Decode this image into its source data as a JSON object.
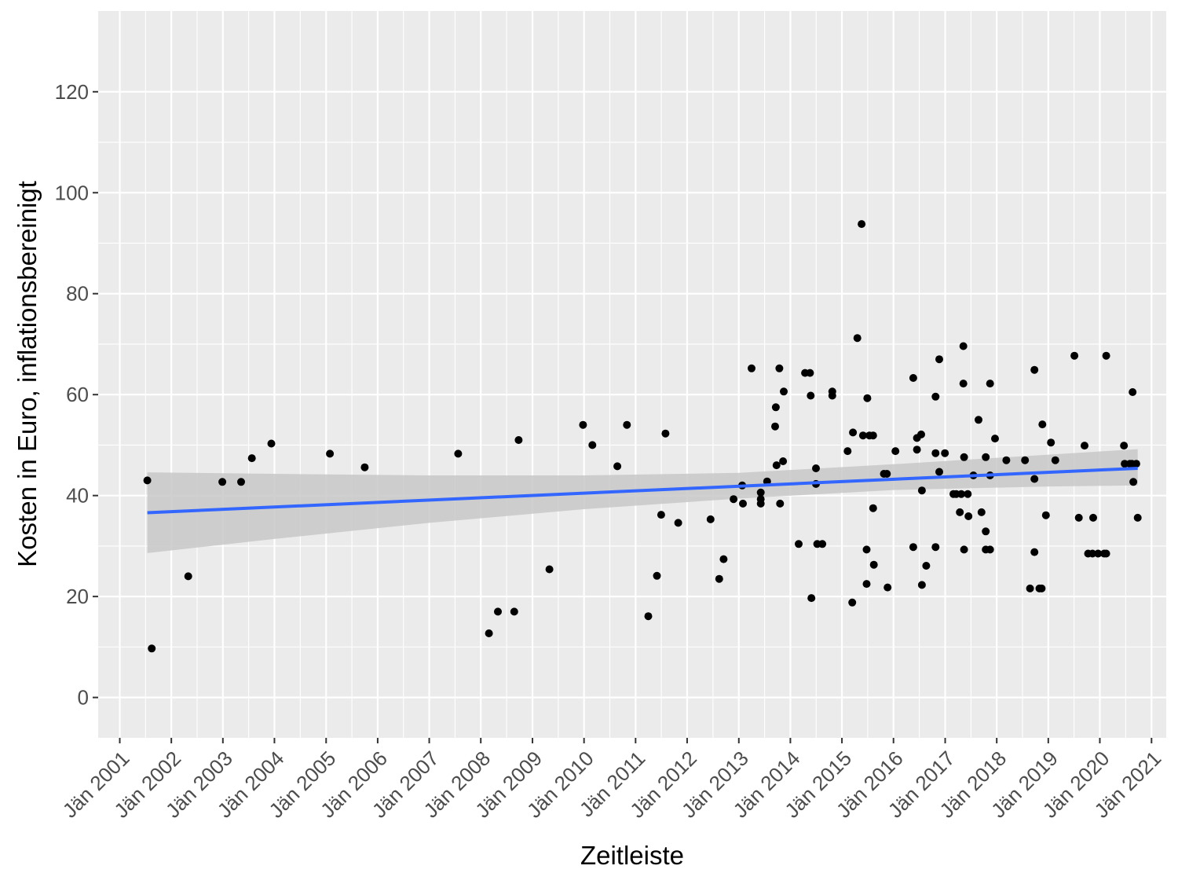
{
  "chart_data": {
    "type": "scatter",
    "xlabel": "Zeitleiste",
    "ylabel": "Kosten in Euro, inflationsbereinigt",
    "xlim": [
      "2000-08-01",
      "2021-04-15"
    ],
    "ylim": [
      -8,
      136
    ],
    "x_ticks": [
      "2001-01-01",
      "2002-01-01",
      "2003-01-01",
      "2004-01-01",
      "2005-01-01",
      "2006-01-01",
      "2007-01-01",
      "2008-01-01",
      "2009-01-01",
      "2010-01-01",
      "2011-01-01",
      "2012-01-01",
      "2013-01-01",
      "2014-01-01",
      "2015-01-01",
      "2016-01-01",
      "2017-01-01",
      "2018-01-01",
      "2019-01-01",
      "2020-01-01",
      "2021-01-01"
    ],
    "x_tick_labels": [
      "Jän 2001",
      "Jän 2002",
      "Jän 2003",
      "Jän 2004",
      "Jän 2005",
      "Jän 2006",
      "Jän 2007",
      "Jän 2008",
      "Jän 2009",
      "Jän 2010",
      "Jän 2011",
      "Jän 2012",
      "Jän 2013",
      "Jän 2014",
      "Jän 2015",
      "Jän 2016",
      "Jän 2017",
      "Jän 2018",
      "Jän 2019",
      "Jän 2020",
      "Jän 2021"
    ],
    "y_ticks": [
      0,
      20,
      40,
      60,
      80,
      100,
      120
    ],
    "y_tick_labels": [
      "0",
      "20",
      "40",
      "60",
      "80",
      "100",
      "120"
    ],
    "grid": true,
    "points": [
      [
        "2001-07-15",
        43
      ],
      [
        "2001-08-15",
        9.7
      ],
      [
        "2002-05-01",
        24
      ],
      [
        "2002-12-28",
        42.7
      ],
      [
        "2003-05-10",
        42.7
      ],
      [
        "2003-07-25",
        47.4
      ],
      [
        "2003-12-10",
        50.3
      ],
      [
        "2005-01-28",
        48.3
      ],
      [
        "2005-10-01",
        45.6
      ],
      [
        "2007-07-25",
        48.3
      ],
      [
        "2008-02-28",
        12.7
      ],
      [
        "2008-05-01",
        17
      ],
      [
        "2008-08-25",
        17
      ],
      [
        "2008-09-25",
        51
      ],
      [
        "2009-05-01",
        25.4
      ],
      [
        "2009-12-25",
        54
      ],
      [
        "2010-03-01",
        50
      ],
      [
        "2010-08-25",
        45.8
      ],
      [
        "2010-11-01",
        54
      ],
      [
        "2011-04-01",
        16.1
      ],
      [
        "2011-06-01",
        24.1
      ],
      [
        "2011-07-01",
        36.2
      ],
      [
        "2011-08-01",
        52.3
      ],
      [
        "2011-10-30",
        34.6
      ],
      [
        "2012-06-15",
        35.3
      ],
      [
        "2012-08-15",
        23.5
      ],
      [
        "2012-09-15",
        27.4
      ],
      [
        "2012-11-25",
        39.3
      ],
      [
        "2013-01-25",
        42
      ],
      [
        "2013-01-30",
        38.4
      ],
      [
        "2013-04-01",
        65.2
      ],
      [
        "2013-06-05",
        40.6
      ],
      [
        "2013-06-05",
        39.3
      ],
      [
        "2013-06-05",
        38.4
      ],
      [
        "2013-07-20",
        42.8
      ],
      [
        "2013-09-15",
        53.7
      ],
      [
        "2013-09-20",
        57.5
      ],
      [
        "2013-09-25",
        46
      ],
      [
        "2013-10-15",
        65.2
      ],
      [
        "2013-10-20",
        38.4
      ],
      [
        "2013-11-10",
        46.8
      ],
      [
        "2013-11-15",
        60.6
      ],
      [
        "2014-03-01",
        30.4
      ],
      [
        "2014-04-15",
        64.3
      ],
      [
        "2014-05-20",
        64.3
      ],
      [
        "2014-05-25",
        59.8
      ],
      [
        "2014-05-30",
        19.7
      ],
      [
        "2014-07-01",
        45.4
      ],
      [
        "2014-07-01",
        42.3
      ],
      [
        "2014-07-10",
        30.4
      ],
      [
        "2014-08-15",
        30.4
      ],
      [
        "2014-10-25",
        60.6
      ],
      [
        "2014-10-25",
        59.8
      ],
      [
        "2015-02-10",
        48.8
      ],
      [
        "2015-03-15",
        18.8
      ],
      [
        "2015-03-20",
        52.5
      ],
      [
        "2015-04-20",
        71.2
      ],
      [
        "2015-05-20",
        93.8
      ],
      [
        "2015-05-30",
        51.9
      ],
      [
        "2015-06-25",
        22.5
      ],
      [
        "2015-06-25",
        29.3
      ],
      [
        "2015-06-30",
        59.3
      ],
      [
        "2015-07-15",
        51.9
      ],
      [
        "2015-08-10",
        51.9
      ],
      [
        "2015-08-10",
        37.5
      ],
      [
        "2015-08-15",
        26.3
      ],
      [
        "2015-10-25",
        44.3
      ],
      [
        "2015-11-15",
        44.3
      ],
      [
        "2015-11-20",
        21.8
      ],
      [
        "2016-01-15",
        48.8
      ],
      [
        "2016-05-20",
        63.3
      ],
      [
        "2016-05-20",
        29.8
      ],
      [
        "2016-06-15",
        51.4
      ],
      [
        "2016-06-15",
        49.1
      ],
      [
        "2016-07-15",
        52.1
      ],
      [
        "2016-07-20",
        41
      ],
      [
        "2016-07-20",
        22.3
      ],
      [
        "2016-08-20",
        26.1
      ],
      [
        "2016-10-25",
        59.6
      ],
      [
        "2016-10-25",
        48.4
      ],
      [
        "2016-10-25",
        29.8
      ],
      [
        "2016-11-20",
        67
      ],
      [
        "2016-11-20",
        44.7
      ],
      [
        "2016-12-30",
        48.4
      ],
      [
        "2017-02-28",
        40.3
      ],
      [
        "2017-03-20",
        40.3
      ],
      [
        "2017-04-15",
        36.7
      ],
      [
        "2017-04-25",
        40.3
      ],
      [
        "2017-05-10",
        62.2
      ],
      [
        "2017-05-10",
        69.6
      ],
      [
        "2017-05-15",
        47.6
      ],
      [
        "2017-05-15",
        29.3
      ],
      [
        "2017-06-10",
        40.3
      ],
      [
        "2017-06-15",
        35.9
      ],
      [
        "2017-07-20",
        44
      ],
      [
        "2017-08-25",
        55
      ],
      [
        "2017-09-15",
        36.7
      ],
      [
        "2017-10-15",
        47.6
      ],
      [
        "2017-10-15",
        32.9
      ],
      [
        "2017-10-15",
        29.3
      ],
      [
        "2017-11-15",
        62.2
      ],
      [
        "2017-11-15",
        44
      ],
      [
        "2017-11-15",
        29.3
      ],
      [
        "2017-12-20",
        51.3
      ],
      [
        "2018-03-10",
        47
      ],
      [
        "2018-07-20",
        47
      ],
      [
        "2018-08-25",
        21.6
      ],
      [
        "2018-09-25",
        64.9
      ],
      [
        "2018-09-25",
        43.3
      ],
      [
        "2018-09-25",
        28.8
      ],
      [
        "2018-10-30",
        21.6
      ],
      [
        "2018-11-15",
        21.6
      ],
      [
        "2018-11-20",
        54.1
      ],
      [
        "2018-12-15",
        36.1
      ],
      [
        "2019-01-20",
        50.5
      ],
      [
        "2019-02-20",
        47
      ],
      [
        "2019-07-05",
        67.7
      ],
      [
        "2019-08-05",
        35.6
      ],
      [
        "2019-09-15",
        49.9
      ],
      [
        "2019-10-10",
        28.5
      ],
      [
        "2019-11-10",
        28.5
      ],
      [
        "2019-11-15",
        35.6
      ],
      [
        "2019-12-20",
        28.5
      ],
      [
        "2020-02-01",
        28.5
      ],
      [
        "2020-02-15",
        67.7
      ],
      [
        "2020-02-15",
        28.5
      ],
      [
        "2020-06-20",
        49.9
      ],
      [
        "2020-06-25",
        46.3
      ],
      [
        "2020-08-01",
        46.3
      ],
      [
        "2020-08-15",
        46.3
      ],
      [
        "2020-08-20",
        60.5
      ],
      [
        "2020-08-25",
        42.7
      ],
      [
        "2020-09-15",
        46.3
      ],
      [
        "2020-09-25",
        35.6
      ]
    ],
    "trend_line": {
      "method": "linear",
      "color": "#3366ff",
      "start": [
        "2001-07-15",
        36.6
      ],
      "end": [
        "2020-09-25",
        45.4
      ],
      "confidence_band": [
        [
          "2001-07-15",
          28.6,
          44.6
        ],
        [
          "2004-01-01",
          31.4,
          44.3
        ],
        [
          "2007-01-01",
          34.6,
          44.0
        ],
        [
          "2010-01-01",
          37.3,
          44.0
        ],
        [
          "2013-01-01",
          39.4,
          44.5
        ],
        [
          "2016-01-01",
          41.1,
          46.2
        ],
        [
          "2019-01-01",
          41.8,
          48.1
        ],
        [
          "2020-09-25",
          42.0,
          49.2
        ]
      ],
      "band_color": "#c8c8c8"
    },
    "colors": {
      "panel": "#ebebeb",
      "grid": "#ffffff",
      "points": "#000000"
    }
  }
}
